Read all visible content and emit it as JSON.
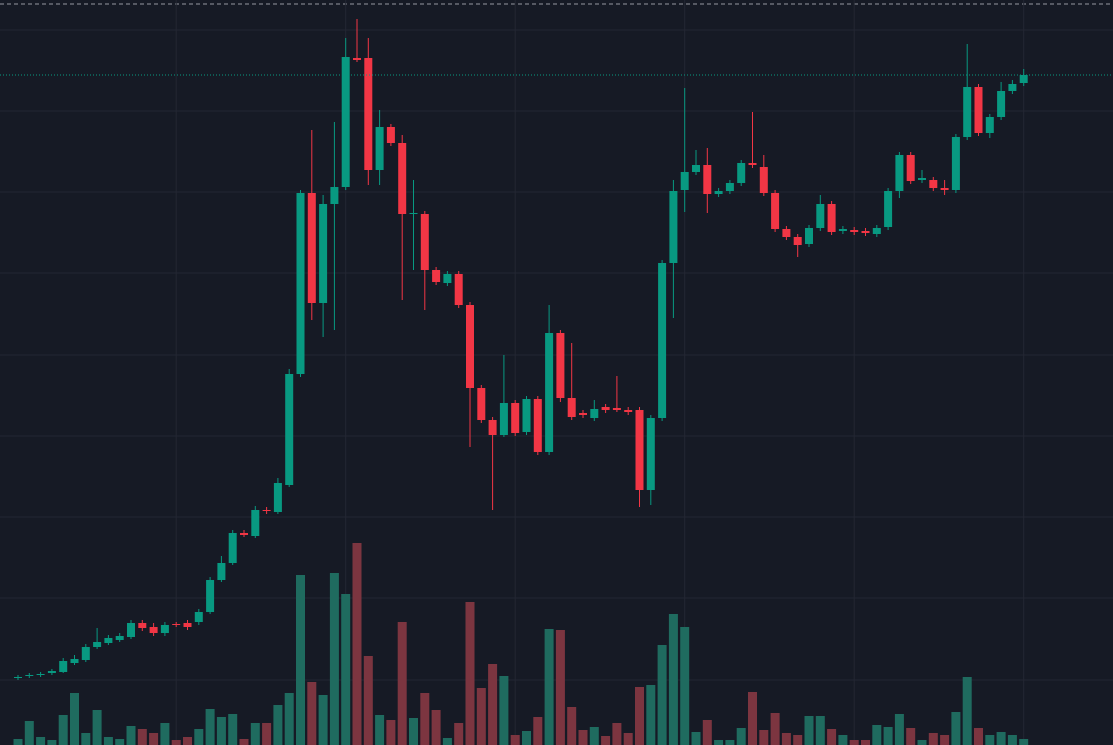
{
  "chart_data": {
    "type": "candlestick",
    "ylim": [
      0,
      745
    ],
    "yticks": [
      65,
      147,
      228,
      309,
      390,
      472,
      553,
      634,
      715
    ],
    "xgrid": [
      14,
      29,
      44,
      59,
      74,
      89
    ],
    "grid": true,
    "up_color": "#089981",
    "down_color": "#f23645",
    "volume_up_color": "#1f6b5f",
    "volume_down_color": "#7c3540",
    "last_price_line": true,
    "open": [
      67,
      69,
      70,
      72,
      73,
      82,
      85,
      98,
      102,
      105,
      108,
      122,
      118,
      112,
      121,
      122,
      123,
      133,
      165,
      182,
      212,
      209,
      235,
      233,
      260,
      371,
      552,
      442,
      541,
      558,
      687,
      687,
      575,
      618,
      602,
      531,
      531,
      475,
      462,
      471,
      440,
      357,
      325,
      310,
      342,
      313,
      346,
      293,
      412,
      347,
      332,
      327,
      338,
      337,
      335,
      335,
      255,
      327,
      482,
      555,
      573,
      580,
      551,
      554,
      562,
      582,
      578,
      552,
      516,
      508,
      501,
      517,
      541,
      514,
      515,
      514,
      511,
      518,
      554,
      590,
      565,
      565,
      557,
      555,
      608,
      658,
      612,
      628,
      654,
      662
    ],
    "high": [
      70,
      72,
      73,
      76,
      87,
      90,
      101,
      117,
      110,
      112,
      125,
      125,
      122,
      123,
      123,
      125,
      136,
      168,
      189,
      215,
      215,
      239,
      238,
      267,
      376,
      555,
      615,
      550,
      623,
      707,
      726,
      707,
      635,
      621,
      610,
      565,
      534,
      478,
      474,
      474,
      443,
      360,
      328,
      390,
      345,
      349,
      349,
      440,
      415,
      402,
      335,
      345,
      341,
      369,
      338,
      338,
      330,
      485,
      565,
      657,
      595,
      597,
      557,
      565,
      585,
      633,
      590,
      555,
      519,
      511,
      520,
      550,
      544,
      519,
      518,
      517,
      520,
      557,
      593,
      593,
      575,
      568,
      565,
      611,
      701,
      661,
      631,
      663,
      665,
      676
    ],
    "low": [
      65,
      67,
      68,
      70,
      72,
      80,
      83,
      96,
      100,
      103,
      106,
      114,
      109,
      109,
      118,
      115,
      120,
      131,
      163,
      180,
      208,
      207,
      231,
      231,
      258,
      368,
      425,
      408,
      415,
      555,
      683,
      560,
      560,
      599,
      445,
      475,
      435,
      460,
      459,
      437,
      298,
      322,
      235,
      308,
      309,
      310,
      290,
      290,
      343,
      325,
      327,
      324,
      332,
      333,
      330,
      238,
      240,
      324,
      427,
      533,
      570,
      532,
      548,
      551,
      559,
      577,
      549,
      513,
      505,
      488,
      498,
      514,
      510,
      511,
      510,
      509,
      508,
      515,
      547,
      561,
      562,
      554,
      550,
      552,
      605,
      609,
      607,
      625,
      651,
      659
    ],
    "close": [
      68,
      70,
      71,
      74,
      84,
      86,
      98,
      103,
      107,
      109,
      122,
      117,
      112,
      120,
      120,
      118,
      133,
      165,
      182,
      212,
      210,
      235,
      234,
      262,
      371,
      552,
      442,
      541,
      558,
      688,
      685,
      575,
      618,
      602,
      531,
      532,
      475,
      463,
      471,
      440,
      357,
      325,
      310,
      342,
      312,
      346,
      293,
      412,
      347,
      328,
      330,
      336,
      335,
      335,
      333,
      255,
      327,
      482,
      554,
      573,
      580,
      551,
      554,
      562,
      582,
      580,
      552,
      516,
      508,
      500,
      517,
      541,
      513,
      516,
      513,
      512,
      517,
      554,
      590,
      564,
      567,
      557,
      555,
      608,
      658,
      612,
      628,
      654,
      661,
      670
    ],
    "volume": [
      6,
      24,
      8,
      5,
      30,
      52,
      12,
      35,
      8,
      6,
      19,
      16,
      12,
      22,
      5,
      8,
      16,
      36,
      28,
      31,
      6,
      22,
      22,
      40,
      52,
      170,
      63,
      50,
      172,
      151,
      202,
      89,
      30,
      25,
      123,
      27,
      52,
      35,
      7,
      22,
      143,
      57,
      81,
      69,
      10,
      14,
      28,
      116,
      115,
      38,
      15,
      18,
      9,
      22,
      12,
      58,
      60,
      100,
      131,
      118,
      13,
      25,
      5,
      5,
      17,
      53,
      15,
      32,
      12,
      10,
      29,
      29,
      16,
      10,
      5,
      5,
      20,
      18,
      31,
      17,
      5,
      12,
      10,
      33,
      68,
      17,
      10,
      13,
      10,
      6
    ],
    "y2lim": [
      0,
      745
    ]
  }
}
